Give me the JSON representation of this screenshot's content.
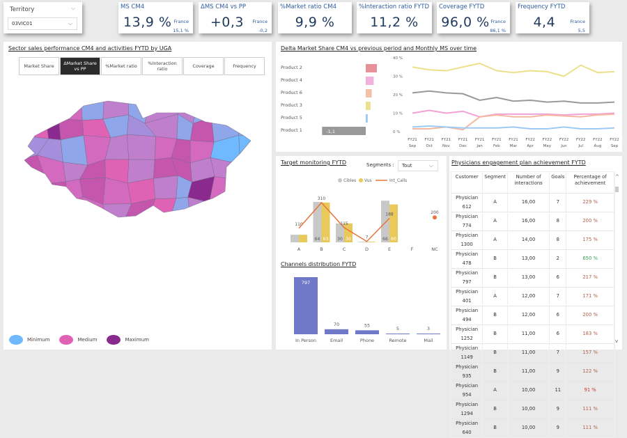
{
  "territory": {
    "label": "Territory",
    "value": "03VIC01"
  },
  "kpis": [
    {
      "title": "MS CM4",
      "value": "13,9 %",
      "france_label": "France",
      "france_value": "15,1 %"
    },
    {
      "title": "ΔMS CM4 vs PP",
      "value": "+0,3",
      "france_label": "France",
      "france_value": "-0,2"
    },
    {
      "title": "%Market ratio CM4",
      "value": "9,9 %"
    },
    {
      "title": "%Interaction ratio FYTD",
      "value": "11,2 %"
    },
    {
      "title": "Coverage FYTD",
      "value": "96,0 %",
      "france_label": "France",
      "france_value": "86,1 %"
    },
    {
      "title": "Frequency FYTD",
      "value": "4,4",
      "france_label": "France",
      "france_value": "5,5"
    }
  ],
  "sector": {
    "title": "Sector sales performance CM4 and activities FYTD by UGA",
    "tabs": [
      {
        "label": "Market Share"
      },
      {
        "label": "ΔMarket Share vs PP",
        "active": true
      },
      {
        "label": "%Market ratio"
      },
      {
        "label": "%Interaction ratio"
      },
      {
        "label": "Coverage"
      },
      {
        "label": "Frequency"
      }
    ],
    "legend": [
      {
        "label": "Minimum",
        "color": "#6fb9ff"
      },
      {
        "label": "Medium",
        "color": "#e062b4"
      },
      {
        "label": "Maximum",
        "color": "#8a2a8e"
      }
    ],
    "map_palette": [
      "#8fa6ea",
      "#a58fdc",
      "#bf7fcc",
      "#d46ac0",
      "#e062b4",
      "#c456ad",
      "#6fb9ff",
      "#8a2a8e"
    ]
  },
  "chart_data": [
    {
      "type": "bar",
      "orientation": "horizontal",
      "title": "Delta Market Share CM4 vs previous period and Monthly MS over time",
      "categories": [
        "Product 2",
        "Product 4",
        "Product 6",
        "Product 3",
        "Product 5",
        "Product 1"
      ],
      "values": [
        0.28,
        0.2,
        0.15,
        0.12,
        0.05,
        -1.1
      ],
      "data_labels": [
        "",
        "",
        "",
        "",
        "",
        "-1,1"
      ],
      "colors": [
        "#e8909a",
        "#f2b0dc",
        "#f5c0a8",
        "#ede08a",
        "#9dcaf5",
        "#999999"
      ]
    },
    {
      "type": "line",
      "x": [
        "FY21 Sep",
        "FY21 Oct",
        "FY21 Nov",
        "FY21 Dec",
        "FY21 Jan",
        "FY21 Feb",
        "FY21 Mar",
        "FY22 Apr",
        "FY22 May",
        "FY22 Jun",
        "FY22 Jul",
        "FY22 Aug",
        "FY22 Sep"
      ],
      "yticks": [
        "0 %",
        "10 %",
        "20 %",
        "30 %",
        "40 %"
      ],
      "ylim": [
        0,
        40
      ],
      "series": [
        {
          "product": "Product 3",
          "color": "#ede08a",
          "values": [
            35,
            33.5,
            33,
            35,
            37,
            33,
            32,
            33,
            32.5,
            30,
            36,
            32,
            32.5
          ]
        },
        {
          "product": "Product 1",
          "color": "#999999",
          "values": [
            21,
            22,
            21,
            20.5,
            17,
            18.5,
            16.5,
            17,
            16,
            16.5,
            15.5,
            15.5,
            16
          ]
        },
        {
          "product": "Product 4",
          "color": "#f2a0d8",
          "values": [
            10,
            11.5,
            10,
            11,
            8,
            9.5,
            9.5,
            9.5,
            9.5,
            9,
            9.5,
            9.5,
            10
          ]
        },
        {
          "product": "Product 6",
          "color": "#f5b8a0",
          "values": [
            1.5,
            1.5,
            2.5,
            1,
            8,
            9,
            8,
            8,
            9,
            8.5,
            8,
            9,
            9.5
          ]
        },
        {
          "product": "Product 5",
          "color": "#9dcaf5",
          "values": [
            2.5,
            3,
            2.5,
            2,
            2,
            2,
            2.5,
            1.5,
            1.5,
            2.5,
            1.5,
            1.5,
            2
          ]
        }
      ]
    },
    {
      "type": "bar",
      "title": "Target monitoring FYTD",
      "categories": [
        "A",
        "B",
        "C",
        "D",
        "E",
        "F",
        "NC"
      ],
      "legend": [
        "Cibles",
        "Vus",
        "Int_Calls"
      ],
      "series": [
        {
          "name": "Cibles",
          "color": "#c8c8c8",
          "values": [
            12,
            64,
            30,
            1,
            66,
            null,
            null
          ],
          "labels": [
            "",
            "64",
            "30",
            "",
            "66",
            "",
            ""
          ]
        },
        {
          "name": "Vus",
          "color": "#e8c95a",
          "values": [
            12,
            63,
            30,
            1,
            60,
            null,
            null
          ],
          "labels": [
            "",
            "63",
            "30",
            "",
            "60",
            "",
            ""
          ]
        },
        {
          "name": "Int_Calls",
          "type": "line",
          "color": "#e8743b",
          "values": [
            110,
            310,
            115,
            7,
            188,
            null,
            200
          ]
        }
      ]
    },
    {
      "type": "bar",
      "title": "Channels distribution FYTD",
      "categories": [
        "In Person",
        "Email",
        "Phone",
        "Remote",
        "Mail"
      ],
      "values": [
        797,
        70,
        55,
        5,
        3
      ],
      "color": "#7079c8"
    }
  ],
  "segments": {
    "label": "Segments :",
    "value": "Tout"
  },
  "table": {
    "title": "Physicians engagement plan achievement FYTD",
    "columns": [
      "Customer",
      "Segment",
      "Number of interactions",
      "Goals",
      "Percentage of achievement"
    ],
    "rows": [
      [
        "Physician 612",
        "A",
        "16,00",
        "7",
        "229 %"
      ],
      [
        "Physician 774",
        "A",
        "16,00",
        "8",
        "200 %"
      ],
      [
        "Physician 1300",
        "A",
        "14,00",
        "8",
        "175 %"
      ],
      [
        "Physician 478",
        "B",
        "13,00",
        "2",
        "650 %"
      ],
      [
        "Physician 797",
        "B",
        "13,00",
        "6",
        "217 %"
      ],
      [
        "Physician 401",
        "A",
        "12,00",
        "7",
        "171 %"
      ],
      [
        "Physician 494",
        "B",
        "12,00",
        "6",
        "200 %"
      ],
      [
        "Physician 1252",
        "B",
        "11,00",
        "6",
        "183 %"
      ],
      [
        "Physician 1149",
        "B",
        "11,00",
        "7",
        "157 %"
      ],
      [
        "Physician 935",
        "B",
        "11,00",
        "9",
        "122 %"
      ],
      [
        "Physician 954",
        "A",
        "10,00",
        "11",
        "91 %"
      ],
      [
        "Physician 1294",
        "B",
        "10,00",
        "9",
        "111 %"
      ],
      [
        "Physician 640",
        "B",
        "10,00",
        "9",
        "111 %"
      ]
    ],
    "pct_colors": {
      "normal": "#b0604a",
      "high": "#3aa050",
      "low": "#d03030"
    }
  }
}
